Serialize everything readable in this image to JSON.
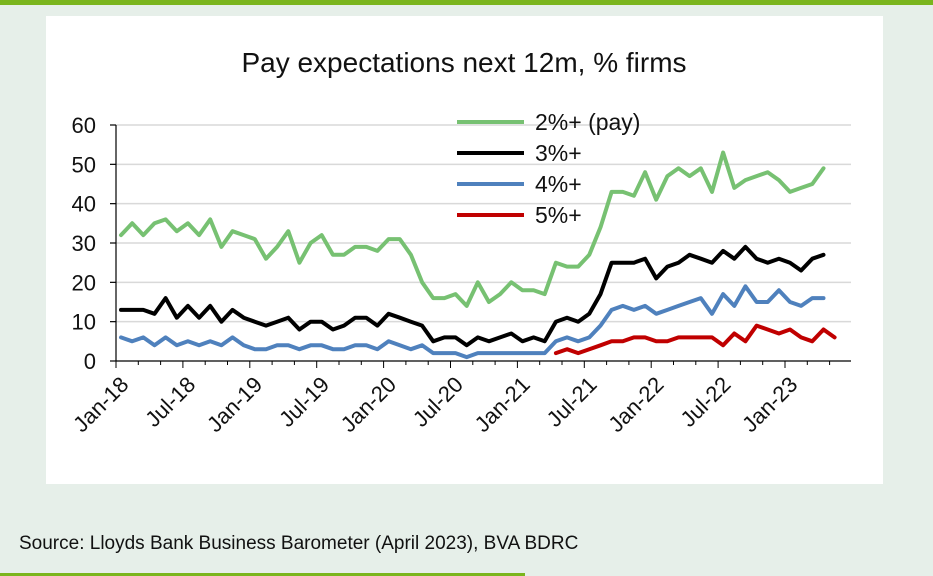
{
  "colors": {
    "background": "#e6efe9",
    "accent": "#7ab51d",
    "card": "#ffffff"
  },
  "source": "Source: Lloyds Bank Business Barometer (April 2023), BVA BDRC",
  "chart_data": {
    "type": "line",
    "title": "Pay expectations next 12m, % firms",
    "xlabel": "",
    "ylabel": "",
    "ylim": [
      0,
      60
    ],
    "yticks": [
      0,
      10,
      20,
      30,
      40,
      50,
      60
    ],
    "grid": true,
    "legend_position": "top-center",
    "x_start": "2018-01",
    "x_tick_labels": [
      "Jan-18",
      "Jul-18",
      "Jan-19",
      "Jul-19",
      "Jan-20",
      "Jul-20",
      "Jan-21",
      "Jul-21",
      "Jan-22",
      "Jul-22",
      "Jan-23"
    ],
    "series": [
      {
        "name": "2%+ (pay)",
        "color": "#77c172",
        "start": "2018-01",
        "values": [
          32,
          35,
          32,
          35,
          36,
          33,
          35,
          32,
          36,
          29,
          33,
          32,
          31,
          26,
          29,
          33,
          25,
          30,
          32,
          27,
          27,
          29,
          29,
          28,
          31,
          31,
          27,
          20,
          16,
          16,
          17,
          14,
          20,
          15,
          17,
          20,
          18,
          18,
          17,
          25,
          24,
          24,
          27,
          34,
          43,
          43,
          42,
          48,
          41,
          47,
          49,
          47,
          49,
          43,
          53,
          44,
          46,
          47,
          48,
          46,
          43,
          44,
          45,
          49
        ]
      },
      {
        "name": "3%+",
        "color": "#000000",
        "start": "2018-01",
        "values": [
          13,
          13,
          13,
          12,
          16,
          11,
          14,
          11,
          14,
          10,
          13,
          11,
          10,
          9,
          10,
          11,
          8,
          10,
          10,
          8,
          9,
          11,
          11,
          9,
          12,
          11,
          10,
          9,
          5,
          6,
          6,
          4,
          6,
          5,
          6,
          7,
          5,
          6,
          5,
          10,
          11,
          10,
          12,
          17,
          25,
          25,
          25,
          26,
          21,
          24,
          25,
          27,
          26,
          25,
          28,
          26,
          29,
          26,
          25,
          26,
          25,
          23,
          26,
          27
        ]
      },
      {
        "name": "4%+",
        "color": "#4f81bd",
        "start": "2018-01",
        "values": [
          6,
          5,
          6,
          4,
          6,
          4,
          5,
          4,
          5,
          4,
          6,
          4,
          3,
          3,
          4,
          4,
          3,
          4,
          4,
          3,
          3,
          4,
          4,
          3,
          5,
          4,
          3,
          4,
          2,
          2,
          2,
          1,
          2,
          2,
          2,
          2,
          2,
          2,
          2,
          5,
          6,
          5,
          6,
          9,
          13,
          14,
          13,
          14,
          12,
          13,
          14,
          15,
          16,
          12,
          17,
          14,
          19,
          15,
          15,
          18,
          15,
          14,
          16,
          16
        ]
      },
      {
        "name": "5%+",
        "color": "#c00000",
        "start": "2021-04",
        "values": [
          2,
          3,
          2,
          3,
          4,
          5,
          5,
          6,
          6,
          5,
          5,
          6,
          6,
          6,
          6,
          4,
          7,
          5,
          9,
          8,
          7,
          8,
          6,
          5,
          8,
          6
        ]
      }
    ]
  }
}
